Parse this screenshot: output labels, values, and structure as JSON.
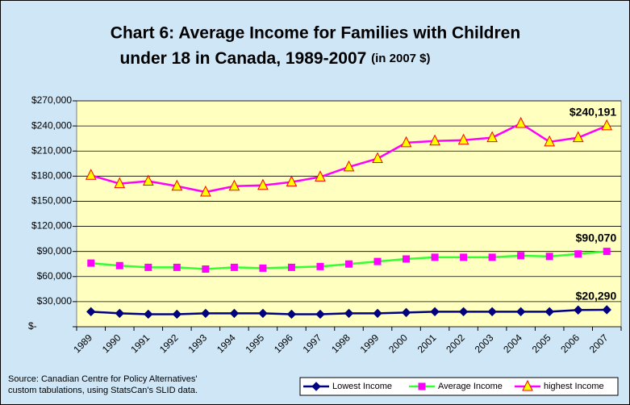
{
  "chart_data": {
    "type": "line",
    "title": [
      "Chart 6: Average Income for Families with Children",
      "under 18 in Canada, 1989-2007 "
    ],
    "subtitle": "(in 2007 $)",
    "categories": [
      "1989",
      "1990",
      "1991",
      "1992",
      "1993",
      "1994",
      "1995",
      "1996",
      "1997",
      "1998",
      "1999",
      "2000",
      "2001",
      "2002",
      "2003",
      "2004",
      "2005",
      "2006",
      "2007"
    ],
    "series": [
      {
        "name": "Lowest Income",
        "color": "#000080",
        "marker": "diamond",
        "marker_color": "#000080",
        "marker_stroke": "#000080",
        "values": [
          18000,
          16000,
          15000,
          15000,
          16000,
          16000,
          16000,
          15000,
          15000,
          16000,
          16000,
          17000,
          18000,
          18000,
          18000,
          18000,
          18000,
          20000,
          20290
        ],
        "value_labels": [
          null,
          null,
          null,
          null,
          null,
          null,
          null,
          null,
          null,
          null,
          null,
          null,
          null,
          null,
          null,
          null,
          null,
          null,
          "$20,290"
        ]
      },
      {
        "name": "Average Income",
        "color": "#33ff33",
        "marker": "square",
        "marker_color": "#ff00ff",
        "marker_stroke": "#ff00ff",
        "values": [
          76000,
          73000,
          71000,
          71000,
          69000,
          71000,
          70000,
          71000,
          72000,
          75000,
          78000,
          81000,
          83000,
          83000,
          83000,
          85000,
          84000,
          87000,
          90070
        ],
        "value_labels": [
          null,
          null,
          null,
          null,
          null,
          null,
          null,
          null,
          null,
          null,
          null,
          null,
          null,
          null,
          null,
          null,
          null,
          null,
          "$90,070"
        ]
      },
      {
        "name": "highest Income",
        "color": "#ff00ff",
        "marker": "triangle",
        "marker_color": "#ffff00",
        "marker_stroke": "#ff0000",
        "values": [
          181000,
          171000,
          174000,
          168000,
          161000,
          168000,
          169000,
          173000,
          179000,
          191000,
          201000,
          220000,
          222000,
          223000,
          226000,
          243000,
          221000,
          226000,
          240191
        ],
        "value_labels": [
          null,
          null,
          null,
          null,
          null,
          null,
          null,
          null,
          null,
          null,
          null,
          null,
          null,
          null,
          null,
          null,
          null,
          null,
          "$240,191"
        ]
      }
    ],
    "ylim": [
      0,
      270000
    ],
    "yticks": [
      {
        "value": 0,
        "label": "$-"
      },
      {
        "value": 30000,
        "label": "$30,000"
      },
      {
        "value": 60000,
        "label": "$60,000"
      },
      {
        "value": 90000,
        "label": "$90,000"
      },
      {
        "value": 120000,
        "label": "$120,000"
      },
      {
        "value": 150000,
        "label": "$150,000"
      },
      {
        "value": 180000,
        "label": "$180,000"
      },
      {
        "value": 210000,
        "label": "$210,000"
      },
      {
        "value": 240000,
        "label": "$240,000"
      },
      {
        "value": 270000,
        "label": "$270,000"
      }
    ],
    "grid": true,
    "legend": "bottom-right",
    "source": [
      "Source: Canadian Centre for Policy Alternatives'",
      "custom tabulations, using StatsCan's SLID data."
    ]
  }
}
